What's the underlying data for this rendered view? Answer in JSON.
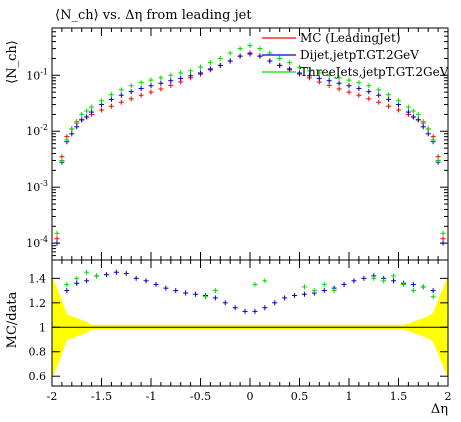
{
  "chart_data": [
    {
      "type": "scatter",
      "panel": "main",
      "title": "⟨N_ch⟩ vs. Δη from leading jet",
      "ylabel": "⟨N_ch⟩",
      "xlabel": "",
      "yscale": "log",
      "xlim": [
        -2.0,
        2.0
      ],
      "ylim": [
        5e-05,
        0.7
      ],
      "yticks": [
        0.0001,
        0.001,
        0.01,
        0.1
      ],
      "ytick_labels": [
        "10^-4",
        "10^-3",
        "10^-2",
        "10^-1"
      ],
      "legend_placement": "top-right",
      "series": [
        {
          "name": "MC (LeadingJet)",
          "color": "#ff0000",
          "x": [
            -1.95,
            -1.9,
            -1.85,
            -1.8,
            -1.75,
            -1.7,
            -1.65,
            -1.6,
            -1.5,
            -1.4,
            -1.3,
            -1.2,
            -1.1,
            -1.0,
            -0.9,
            -0.8,
            -0.7,
            -0.6,
            -0.5,
            -0.4,
            -0.3,
            -0.2,
            -0.1,
            0.0,
            0.1,
            0.2,
            0.3,
            0.4,
            0.5,
            0.6,
            0.7,
            0.8,
            0.9,
            1.0,
            1.1,
            1.2,
            1.3,
            1.4,
            1.5,
            1.6,
            1.65,
            1.7,
            1.75,
            1.8,
            1.85,
            1.9,
            1.95
          ],
          "y": [
            0.00012,
            0.0035,
            0.008,
            0.011,
            0.014,
            0.016,
            0.018,
            0.02,
            0.024,
            0.028,
            0.033,
            0.038,
            0.044,
            0.05,
            0.057,
            0.066,
            0.076,
            0.09,
            0.105,
            0.125,
            0.15,
            0.18,
            0.22,
            0.25,
            0.22,
            0.18,
            0.15,
            0.125,
            0.105,
            0.09,
            0.076,
            0.066,
            0.057,
            0.05,
            0.044,
            0.038,
            0.033,
            0.028,
            0.024,
            0.02,
            0.018,
            0.016,
            0.014,
            0.011,
            0.008,
            0.0035,
            0.00012
          ]
        },
        {
          "name": "Dijet,jetpT.GT.2GeV",
          "color": "#0000cc",
          "x": [
            -1.95,
            -1.9,
            -1.85,
            -1.8,
            -1.75,
            -1.7,
            -1.65,
            -1.6,
            -1.5,
            -1.4,
            -1.3,
            -1.2,
            -1.1,
            -1.0,
            -0.9,
            -0.8,
            -0.7,
            -0.6,
            -0.5,
            -0.4,
            -0.3,
            -0.2,
            -0.1,
            0.0,
            0.1,
            0.2,
            0.3,
            0.4,
            0.5,
            0.6,
            0.7,
            0.8,
            0.9,
            1.0,
            1.1,
            1.2,
            1.3,
            1.4,
            1.5,
            1.6,
            1.65,
            1.7,
            1.75,
            1.8,
            1.85,
            1.9,
            1.95
          ],
          "y": [
            0.0001,
            0.0028,
            0.0065,
            0.009,
            0.012,
            0.016,
            0.018,
            0.022,
            0.03,
            0.037,
            0.044,
            0.051,
            0.058,
            0.065,
            0.072,
            0.08,
            0.088,
            0.098,
            0.11,
            0.13,
            0.15,
            0.18,
            0.22,
            0.24,
            0.22,
            0.18,
            0.15,
            0.13,
            0.11,
            0.098,
            0.088,
            0.08,
            0.072,
            0.065,
            0.058,
            0.051,
            0.044,
            0.037,
            0.03,
            0.022,
            0.018,
            0.016,
            0.012,
            0.009,
            0.0065,
            0.0028,
            0.0001
          ]
        },
        {
          "name": "ThreeJets,jetpT.GT.2GeV",
          "color": "#00dd00",
          "x": [
            -1.95,
            -1.9,
            -1.85,
            -1.8,
            -1.75,
            -1.7,
            -1.65,
            -1.6,
            -1.5,
            -1.4,
            -1.3,
            -1.2,
            -1.1,
            -1.0,
            -0.9,
            -0.8,
            -0.7,
            -0.6,
            -0.5,
            -0.4,
            -0.3,
            -0.2,
            -0.1,
            0.0,
            0.1,
            0.2,
            0.3,
            0.4,
            0.5,
            0.6,
            0.7,
            0.8,
            0.9,
            1.0,
            1.1,
            1.2,
            1.3,
            1.4,
            1.5,
            1.6,
            1.65,
            1.7,
            1.75,
            1.8,
            1.85,
            1.9,
            1.95
          ],
          "y": [
            0.00015,
            0.003,
            0.007,
            0.011,
            0.015,
            0.02,
            0.023,
            0.027,
            0.035,
            0.045,
            0.055,
            0.065,
            0.074,
            0.082,
            0.09,
            0.1,
            0.11,
            0.12,
            0.14,
            0.17,
            0.2,
            0.25,
            0.3,
            0.34,
            0.3,
            0.25,
            0.2,
            0.17,
            0.14,
            0.12,
            0.11,
            0.1,
            0.09,
            0.082,
            0.074,
            0.065,
            0.055,
            0.045,
            0.035,
            0.027,
            0.023,
            0.02,
            0.015,
            0.011,
            0.007,
            0.003,
            0.00015
          ]
        }
      ]
    },
    {
      "type": "scatter",
      "panel": "ratio",
      "ylabel": "MC/data",
      "xlabel": "Δη",
      "xlim": [
        -2.0,
        2.0
      ],
      "ylim": [
        0.52,
        1.55
      ],
      "xticks": [
        -2,
        -1.5,
        -1,
        -0.5,
        0,
        0.5,
        1,
        1.5,
        2
      ],
      "xtick_labels": [
        "-2",
        "-1.5",
        "-1",
        "-0.5",
        "0",
        "0.5",
        "1",
        "1.5",
        "2"
      ],
      "yticks": [
        0.6,
        0.8,
        1.0,
        1.2,
        1.4
      ],
      "ytick_labels": [
        "0.6",
        "0.8",
        "1",
        "1.2",
        "1.4"
      ],
      "band_color": "#ffff00",
      "reference_line": 1.0,
      "series": [
        {
          "name": "Dijet,jetpT.GT.2GeV",
          "color": "#0000cc",
          "x": [
            -1.85,
            -1.75,
            -1.65,
            -1.55,
            -1.45,
            -1.35,
            -1.25,
            -1.15,
            -1.05,
            -0.95,
            -0.85,
            -0.75,
            -0.65,
            -0.55,
            -0.45,
            -0.35,
            -0.25,
            -0.15,
            -0.05,
            0.05,
            0.15,
            0.25,
            0.35,
            0.45,
            0.55,
            0.65,
            0.75,
            0.85,
            0.95,
            1.05,
            1.15,
            1.25,
            1.35,
            1.45,
            1.55,
            1.65,
            1.75,
            1.85
          ],
          "y": [
            1.3,
            1.36,
            1.38,
            1.42,
            1.43,
            1.45,
            1.44,
            1.4,
            1.38,
            1.35,
            1.32,
            1.3,
            1.28,
            1.27,
            1.26,
            1.24,
            1.2,
            1.16,
            1.13,
            1.13,
            1.16,
            1.2,
            1.24,
            1.26,
            1.27,
            1.28,
            1.3,
            1.32,
            1.35,
            1.38,
            1.4,
            1.42,
            1.4,
            1.38,
            1.36,
            1.35,
            1.33,
            1.3
          ]
        },
        {
          "name": "ThreeJets,jetpT.GT.2GeV",
          "color": "#00dd00",
          "x": [
            -1.85,
            -1.75,
            -1.65,
            -1.55,
            -0.45,
            -0.35,
            0.05,
            0.15,
            0.55,
            0.65,
            0.75,
            0.85,
            1.25,
            1.35,
            1.45,
            1.55,
            1.65,
            1.75,
            1.85
          ],
          "y": [
            1.35,
            1.4,
            1.45,
            1.42,
            1.25,
            1.3,
            1.35,
            1.38,
            1.33,
            1.3,
            1.35,
            1.3,
            1.4,
            1.38,
            1.42,
            1.35,
            1.3,
            1.33,
            1.25
          ]
        }
      ]
    }
  ]
}
